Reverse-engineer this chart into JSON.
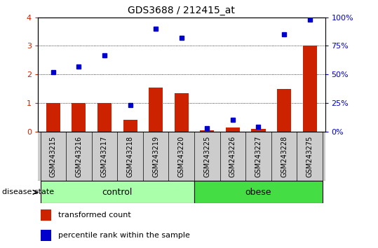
{
  "title": "GDS3688 / 212415_at",
  "samples": [
    "GSM243215",
    "GSM243216",
    "GSM243217",
    "GSM243218",
    "GSM243219",
    "GSM243220",
    "GSM243225",
    "GSM243226",
    "GSM243227",
    "GSM243228",
    "GSM243275"
  ],
  "red_bars": [
    1.0,
    1.0,
    1.0,
    0.4,
    1.55,
    1.35,
    0.05,
    0.15,
    0.1,
    1.5,
    3.0
  ],
  "blue_dots": [
    52,
    57,
    67,
    23,
    90,
    82,
    3,
    10,
    4,
    85,
    98
  ],
  "left_ylim": [
    0,
    4
  ],
  "right_ylim": [
    0,
    100
  ],
  "left_yticks": [
    0,
    1,
    2,
    3,
    4
  ],
  "right_yticks": [
    0,
    25,
    50,
    75,
    100
  ],
  "right_yticklabels": [
    "0%",
    "25%",
    "50%",
    "75%",
    "100%"
  ],
  "control_count": 6,
  "obese_count": 5,
  "bar_color": "#cc2200",
  "dot_color": "#0000cc",
  "control_bg": "#aaffaa",
  "obese_bg": "#44dd44",
  "tick_label_bg": "#cccccc",
  "legend_red_label": "transformed count",
  "legend_blue_label": "percentile rank within the sample",
  "disease_state_label": "disease state",
  "control_label": "control",
  "obese_label": "obese",
  "title_fontsize": 10,
  "tick_fontsize": 8,
  "label_fontsize": 7,
  "legend_fontsize": 8
}
